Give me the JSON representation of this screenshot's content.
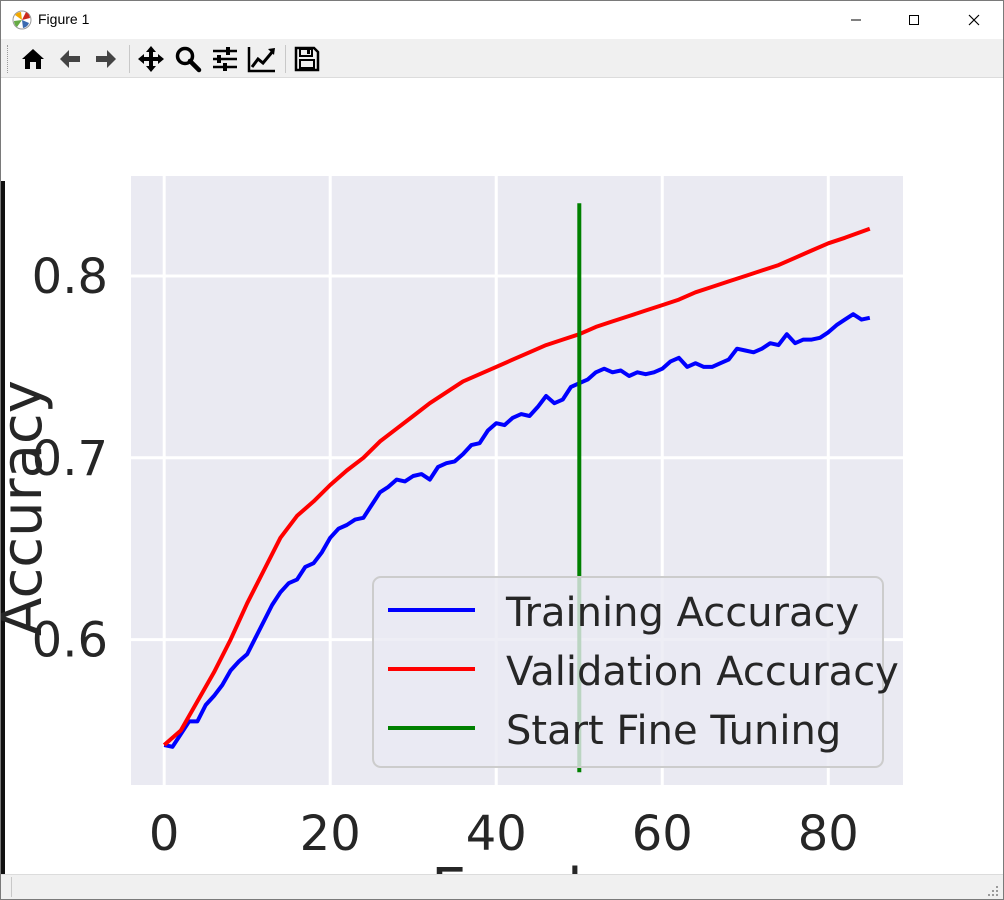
{
  "window": {
    "title": "Figure 1"
  },
  "toolbar": {
    "buttons": [
      {
        "name": "home",
        "icon": "home-icon"
      },
      {
        "name": "back",
        "icon": "arrow-left-icon"
      },
      {
        "name": "forward",
        "icon": "arrow-right-icon"
      },
      {
        "name": "pan",
        "icon": "move-icon"
      },
      {
        "name": "zoom",
        "icon": "magnifier-icon"
      },
      {
        "name": "configure-subplots",
        "icon": "sliders-icon"
      },
      {
        "name": "edit-axis",
        "icon": "line-chart-icon"
      },
      {
        "name": "save",
        "icon": "floppy-disk-icon"
      }
    ]
  },
  "chart_data": {
    "type": "line",
    "xlabel": "Epoch",
    "ylabel": "Accuracy",
    "xlim": [
      -4,
      89
    ],
    "ylim": [
      0.52,
      0.855
    ],
    "xticks": [
      "0",
      "20",
      "40",
      "60",
      "80"
    ],
    "yticks": [
      "0.6",
      "0.7",
      "0.8"
    ],
    "grid": true,
    "legend_position": "lower-right",
    "background": "#eaeaf2",
    "series": [
      {
        "name": "Training Accuracy",
        "color": "#0000ff",
        "x": [
          0,
          1,
          2,
          3,
          4,
          5,
          6,
          7,
          8,
          9,
          10,
          11,
          12,
          13,
          14,
          15,
          16,
          17,
          18,
          19,
          20,
          21,
          22,
          23,
          24,
          25,
          26,
          27,
          28,
          29,
          30,
          31,
          32,
          33,
          34,
          35,
          36,
          37,
          38,
          39,
          40,
          41,
          42,
          43,
          44,
          45,
          46,
          47,
          48,
          49,
          50,
          51,
          52,
          53,
          54,
          55,
          56,
          57,
          58,
          59,
          60,
          61,
          62,
          63,
          64,
          65,
          66,
          67,
          68,
          69,
          70,
          71,
          72,
          73,
          74,
          75,
          76,
          77,
          78,
          79,
          80,
          81,
          82,
          83,
          84,
          85
        ],
        "values": [
          0.542,
          0.541,
          0.548,
          0.555,
          0.555,
          0.564,
          0.569,
          0.575,
          0.583,
          0.588,
          0.592,
          0.601,
          0.61,
          0.619,
          0.626,
          0.631,
          0.633,
          0.64,
          0.642,
          0.648,
          0.656,
          0.661,
          0.663,
          0.666,
          0.667,
          0.674,
          0.681,
          0.684,
          0.688,
          0.687,
          0.69,
          0.691,
          0.688,
          0.695,
          0.697,
          0.698,
          0.702,
          0.707,
          0.708,
          0.715,
          0.719,
          0.718,
          0.722,
          0.724,
          0.723,
          0.728,
          0.734,
          0.73,
          0.732,
          0.739,
          0.741,
          0.743,
          0.747,
          0.749,
          0.747,
          0.748,
          0.745,
          0.747,
          0.746,
          0.747,
          0.749,
          0.753,
          0.755,
          0.75,
          0.752,
          0.75,
          0.75,
          0.752,
          0.754,
          0.76,
          0.759,
          0.758,
          0.76,
          0.763,
          0.762,
          0.768,
          0.763,
          0.765,
          0.765,
          0.766,
          0.769,
          0.773,
          0.776,
          0.779,
          0.776,
          0.777
        ]
      },
      {
        "name": "Validation Accuracy",
        "color": "#ff0000",
        "x": [
          0,
          2,
          4,
          6,
          8,
          10,
          12,
          14,
          16,
          18,
          20,
          22,
          24,
          26,
          28,
          30,
          32,
          34,
          36,
          38,
          40,
          42,
          44,
          46,
          48,
          50,
          52,
          54,
          56,
          58,
          60,
          62,
          64,
          66,
          68,
          70,
          72,
          74,
          76,
          78,
          80,
          82,
          85
        ],
        "values": [
          0.542,
          0.55,
          0.566,
          0.582,
          0.6,
          0.62,
          0.638,
          0.656,
          0.668,
          0.676,
          0.685,
          0.693,
          0.7,
          0.709,
          0.716,
          0.723,
          0.73,
          0.736,
          0.742,
          0.746,
          0.75,
          0.754,
          0.758,
          0.762,
          0.765,
          0.768,
          0.772,
          0.775,
          0.778,
          0.781,
          0.784,
          0.787,
          0.791,
          0.794,
          0.797,
          0.8,
          0.803,
          0.806,
          0.81,
          0.814,
          0.818,
          0.821,
          0.826
        ]
      },
      {
        "name": "Start Fine Tuning",
        "color": "#008000",
        "x": [
          50,
          50
        ],
        "values": [
          0.527,
          0.84
        ]
      }
    ]
  }
}
